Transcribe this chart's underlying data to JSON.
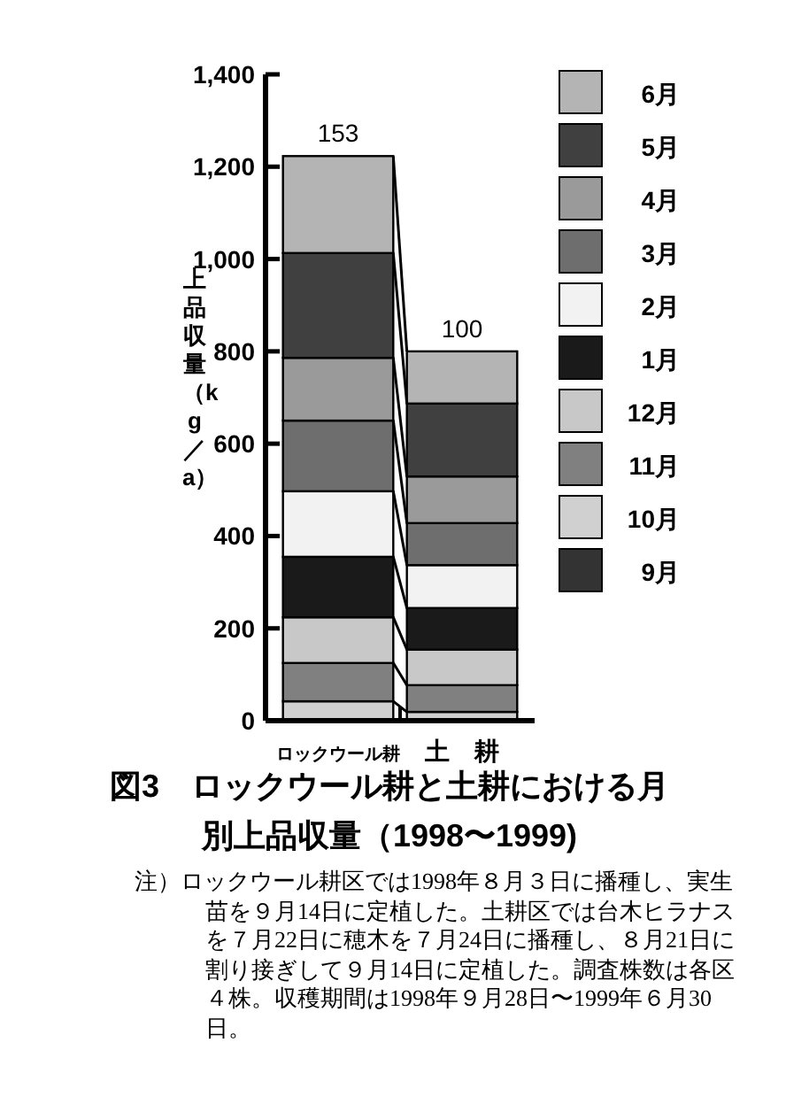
{
  "chart_data": {
    "type": "bar",
    "stacked": true,
    "title": "図3　ロックウール耕と土耕における月別上品収量（1998〜1999)",
    "ylabel": "上品収量（kg／a）",
    "categories": [
      "ロックウール耕",
      "土　耕"
    ],
    "series": [
      {
        "name": "9月",
        "color": "#333333",
        "values": [
          null,
          null
        ]
      },
      {
        "name": "10月",
        "color": "#d0d0d0",
        "values": [
          42,
          19
        ]
      },
      {
        "name": "11月",
        "color": "#808080",
        "values": [
          83,
          58
        ]
      },
      {
        "name": "12月",
        "color": "#c8c8c8",
        "values": [
          99,
          77
        ]
      },
      {
        "name": "1月",
        "color": "#1a1a1a",
        "values": [
          131,
          90
        ]
      },
      {
        "name": "2月",
        "color": "#f2f2f2",
        "values": [
          142,
          93
        ]
      },
      {
        "name": "3月",
        "color": "#6e6e6e",
        "values": [
          153,
          91
        ]
      },
      {
        "name": "4月",
        "color": "#9a9a9a",
        "values": [
          136,
          101
        ]
      },
      {
        "name": "5月",
        "color": "#404040",
        "values": [
          227,
          158
        ]
      },
      {
        "name": "6月",
        "color": "#b4b4b4",
        "values": [
          210,
          113
        ]
      }
    ],
    "ylim": [
      0,
      1400
    ],
    "yticks": [
      0,
      200,
      400,
      600,
      800,
      {
        "value": 1000,
        "label": "1,000"
      },
      {
        "value": 1200,
        "label": "1,200"
      },
      {
        "value": 1400,
        "label": "1,400"
      }
    ],
    "legend": "top right",
    "grid": false,
    "annotations": [
      {
        "text": "153",
        "x": "ロックウール耕",
        "y": 1223
      },
      {
        "text": "100",
        "x": "土　耕",
        "y": 800
      },
      "注）ロックウール耕区では1998年８月３日に播種し、実生苗を９月14日に定植した。土耕区では台木ヒラナスを７月22日に穂木を７月24日に播種し、８月21日に割り接ぎして９月14日に定植した。調査株数は各区４株。収穫期間は1998年９月28日〜1999年６月30日。"
    ]
  }
}
